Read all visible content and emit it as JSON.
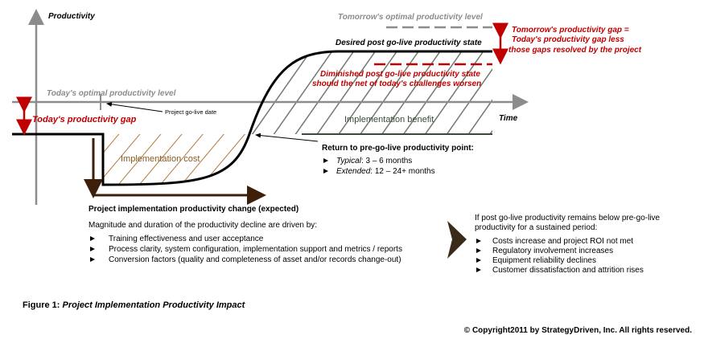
{
  "axes": {
    "y_label": "Productivity",
    "x_label": "Time"
  },
  "levels": {
    "tomorrow_optimal": "Tomorrow's optimal productivity level",
    "desired_state": "Desired post go-live productivity state",
    "tomorrow_gap": [
      "Tomorrow's productivity gap =",
      "Today's productivity gap less",
      "those gaps resolved by the project"
    ],
    "diminished_state": [
      "Diminished post go-live productivity state",
      "should the net of today's challenges worsen"
    ],
    "today_optimal": "Today's optimal productivity level",
    "today_gap": "Today's productivity gap",
    "go_live": "Project go-live date"
  },
  "regions": {
    "benefit": "Implementation benefit",
    "cost": "Implementation cost"
  },
  "return_point": {
    "title": "Return to pre-go-live productivity point:",
    "items": [
      {
        "label": "Typical",
        "text": ":  3 – 6 months"
      },
      {
        "label": "Extended",
        "text": ":  12 – 24+ months"
      }
    ]
  },
  "change_label": "Project implementation productivity change (expected)",
  "drivers": {
    "intro": "Magnitude and duration of the productivity decline are driven by:",
    "items": [
      "Training effectiveness and user acceptance",
      "Process clarity, system configuration, implementation support and metrics / reports",
      "Conversion factors (quality and completeness of asset and/or records change-out)"
    ]
  },
  "consequences": {
    "intro": [
      "If post go-live productivity remains below pre-go-live",
      "productivity for a sustained period:"
    ],
    "items": [
      "Costs increase and project ROI not met",
      "Regulatory involvement increases",
      "Equipment  reliability declines",
      "Customer dissatisfaction and attrition rises"
    ]
  },
  "figure": {
    "number": "Figure 1:",
    "title": "Project Implementation Productivity Impact"
  },
  "copyright": "© Copyright2011 by StrategyDriven, Inc.  All rights reserved."
}
